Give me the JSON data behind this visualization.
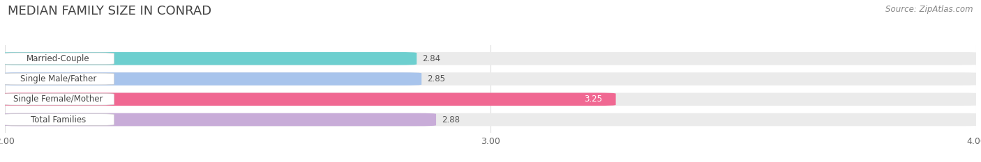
{
  "title": "MEDIAN FAMILY SIZE IN CONRAD",
  "source": "Source: ZipAtlas.com",
  "categories": [
    "Married-Couple",
    "Single Male/Father",
    "Single Female/Mother",
    "Total Families"
  ],
  "values": [
    2.84,
    2.85,
    3.25,
    2.88
  ],
  "bar_colors": [
    "#6dcfcf",
    "#a8c4ec",
    "#f06892",
    "#c8acd8"
  ],
  "xlim": [
    2.0,
    4.0
  ],
  "xticks": [
    2.0,
    3.0,
    4.0
  ],
  "xtick_labels": [
    "2.00",
    "3.00",
    "4.00"
  ],
  "bar_height": 0.62,
  "background_color": "#ffffff",
  "bar_bg_color": "#ebebeb",
  "title_fontsize": 13,
  "source_fontsize": 8.5,
  "label_fontsize": 8.5,
  "value_fontsize": 8.5,
  "tick_fontsize": 9,
  "title_color": "#444444",
  "value_label_color": "#555555",
  "pink_value_color": "#ffffff"
}
